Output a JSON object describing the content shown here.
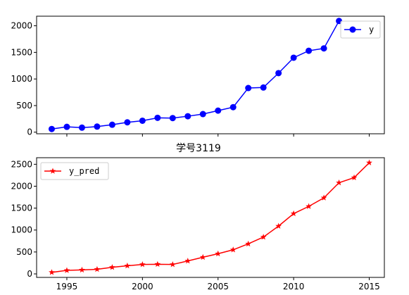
{
  "chart_data": [
    {
      "type": "line",
      "title": "",
      "xlabel": "",
      "ylabel": "",
      "xlim": [
        1993.0,
        2016.0
      ],
      "ylim": [
        -30,
        2180
      ],
      "x_ticks": [
        1995,
        2000,
        2005,
        2010,
        2015
      ],
      "x_tick_labels_visible": false,
      "y_ticks": [
        0,
        500,
        1000,
        1500,
        2000
      ],
      "grid": false,
      "legend": {
        "position": "upper right"
      },
      "series": [
        {
          "name": "y",
          "color": "#0000ff",
          "marker": "circle",
          "x": [
            1994,
            1995,
            1996,
            1997,
            1998,
            1999,
            2000,
            2001,
            2002,
            2003,
            2004,
            2005,
            2006,
            2007,
            2008,
            2009,
            2010,
            2011,
            2012,
            2013
          ],
          "y": [
            60,
            100,
            85,
            105,
            140,
            185,
            215,
            270,
            265,
            300,
            340,
            405,
            470,
            830,
            840,
            1110,
            1400,
            1530,
            1575,
            2090
          ]
        }
      ]
    },
    {
      "type": "line",
      "title": "学号3119",
      "xlabel": "",
      "ylabel": "",
      "xlim": [
        1993.0,
        2016.0
      ],
      "ylim": [
        -80,
        2650
      ],
      "x_ticks": [
        1995,
        2000,
        2005,
        2010,
        2015
      ],
      "y_ticks": [
        0,
        500,
        1000,
        1500,
        2000,
        2500
      ],
      "grid": false,
      "legend": {
        "position": "upper left"
      },
      "series": [
        {
          "name": "y_pred",
          "color": "#ff0000",
          "marker": "star",
          "x": [
            1994,
            1995,
            1996,
            1997,
            1998,
            1999,
            2000,
            2001,
            2002,
            2003,
            2004,
            2005,
            2006,
            2007,
            2008,
            2009,
            2010,
            2011,
            2012,
            2013,
            2014,
            2015
          ],
          "y": [
            35,
            80,
            90,
            105,
            150,
            185,
            215,
            220,
            215,
            295,
            380,
            460,
            550,
            685,
            840,
            1090,
            1375,
            1540,
            1735,
            2080,
            2195,
            2535
          ]
        }
      ]
    }
  ]
}
